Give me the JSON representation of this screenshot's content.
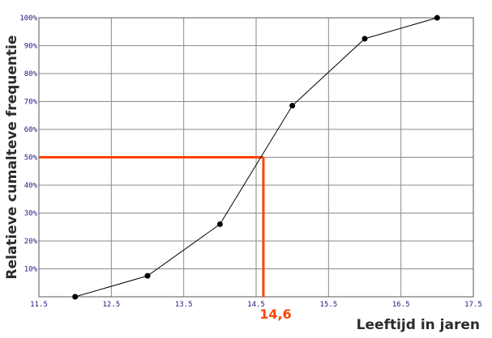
{
  "chart_data": {
    "type": "line",
    "title": "",
    "xlabel": "Leeftijd in jaren",
    "ylabel": "Relatieve cumalteve frequentie",
    "xlim": [
      11.5,
      17.5
    ],
    "ylim": [
      0,
      100
    ],
    "x_ticks": [
      "11.5",
      "12.5",
      "13.5",
      "14.5",
      "15.5",
      "16.5",
      "17.5"
    ],
    "y_ticks": [
      "10%",
      "20%",
      "30%",
      "40%",
      "50%",
      "60%",
      "70%",
      "80%",
      "90%",
      "100%"
    ],
    "grid": true,
    "series": [
      {
        "x": [
          12,
          13,
          14,
          15,
          16,
          17
        ],
        "y": [
          0,
          7.5,
          26,
          68.5,
          92.5,
          100
        ]
      }
    ],
    "annotation": {
      "label": "14,6",
      "x": 14.6,
      "y": 50,
      "color": "#ff4400"
    }
  }
}
